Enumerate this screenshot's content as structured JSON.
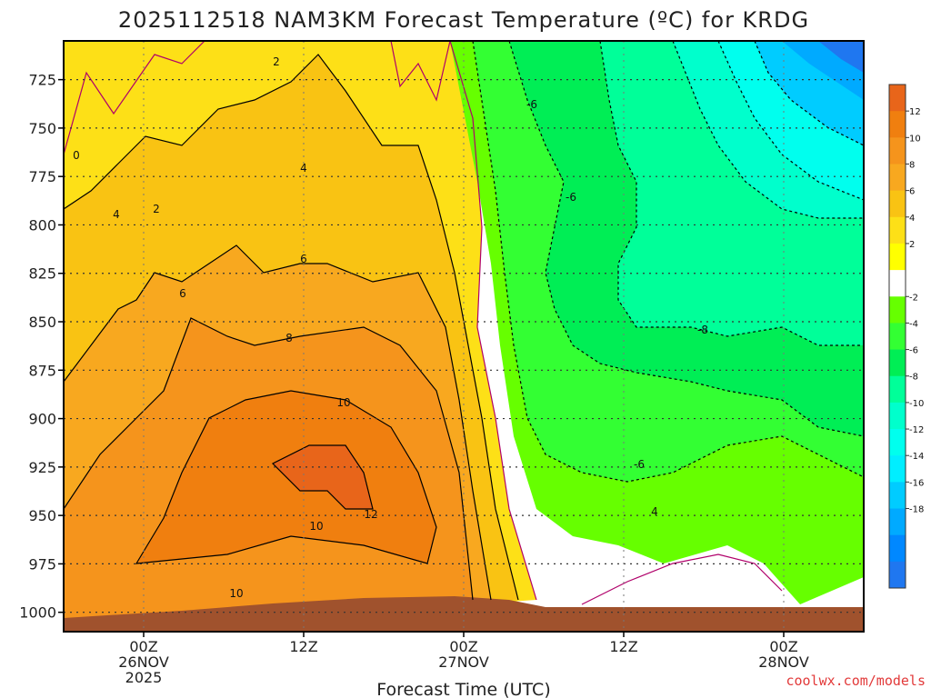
{
  "chart_data": {
    "type": "heatmap",
    "title": "2025112518 NAM3KM Forecast Temperature (ºC) for KRDG",
    "xlabel": "Forecast Time (UTC)",
    "ylabel": "",
    "credit": "coolwx.com/models",
    "y_axis": {
      "ticks": [
        725,
        750,
        775,
        800,
        825,
        850,
        875,
        900,
        925,
        950,
        975,
        1000
      ],
      "range": [
        705,
        1010
      ],
      "inverted": true
    },
    "x_axis": {
      "ticks": [
        {
          "hour": 6,
          "lines": [
            "00Z",
            "26NOV",
            "2025"
          ]
        },
        {
          "hour": 18,
          "lines": [
            "12Z"
          ]
        },
        {
          "hour": 30,
          "lines": [
            "00Z",
            "27NOV"
          ]
        },
        {
          "hour": 42,
          "lines": [
            "12Z"
          ]
        },
        {
          "hour": 54,
          "lines": [
            "00Z",
            "28NOV"
          ]
        }
      ],
      "range": [
        0,
        60
      ]
    },
    "grid": true,
    "colorbar": {
      "labels": [
        12,
        10,
        8,
        6,
        4,
        2,
        -2,
        -4,
        -6,
        -8,
        -10,
        -12,
        -14,
        -16,
        -18
      ],
      "colors": [
        "#e8651a",
        "#f07f0f",
        "#f5941c",
        "#f8a81f",
        "#f9c313",
        "#fde017",
        "#ffff00",
        "#ffffff",
        "#66ff00",
        "#33ff33",
        "#00ee55",
        "#00ff99",
        "#00ffcc",
        "#00ffee",
        "#00eeff",
        "#00ccff",
        "#00aaff",
        "#0088ff",
        "#1f77f0"
      ]
    },
    "contour_labels": [
      "0",
      "2",
      "2",
      "4",
      "4",
      "6",
      "6",
      "8",
      "10",
      "10",
      "10",
      "12",
      "-6",
      "-6",
      "-6",
      "-8",
      "4"
    ]
  }
}
